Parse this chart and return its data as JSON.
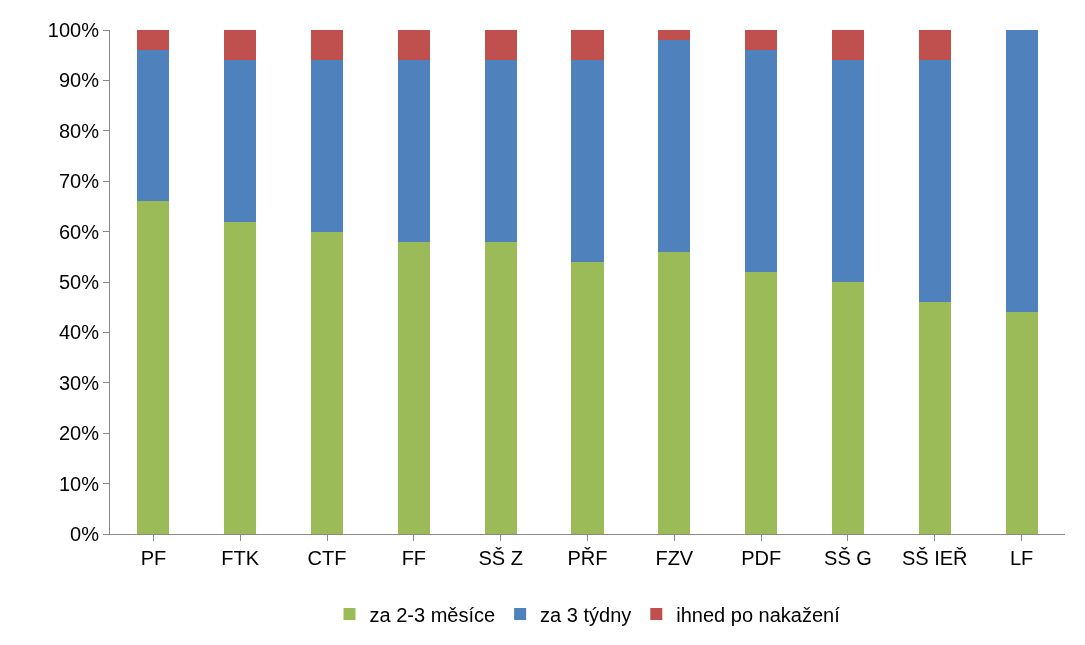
{
  "chart_data": {
    "type": "bar",
    "stacked": true,
    "categories": [
      "PF",
      "FTK",
      "CTF",
      "FF",
      "SŠ Z",
      "PŘF",
      "FZV",
      "PDF",
      "SŠ G",
      "SŠ IEŘ",
      "LF"
    ],
    "series": [
      {
        "name": "za 2-3 měsíce",
        "color": "#9bbb59",
        "values": [
          66,
          62,
          60,
          58,
          58,
          54,
          56,
          52,
          50,
          46,
          44
        ]
      },
      {
        "name": "za 3 týdny",
        "color": "#4f81bd",
        "values": [
          30,
          32,
          34,
          36,
          36,
          40,
          42,
          44,
          44,
          48,
          56
        ]
      },
      {
        "name": "ihned po nakažení",
        "color": "#c0504d",
        "values": [
          4,
          6,
          6,
          6,
          6,
          6,
          2,
          4,
          6,
          6,
          0
        ]
      }
    ],
    "ylim": [
      0,
      100
    ],
    "yticks": [
      {
        "value": 0,
        "label": "0%"
      },
      {
        "value": 10,
        "label": "10%"
      },
      {
        "value": 20,
        "label": "20%"
      },
      {
        "value": 30,
        "label": "30%"
      },
      {
        "value": 40,
        "label": "40%"
      },
      {
        "value": 50,
        "label": "50%"
      },
      {
        "value": 60,
        "label": "60%"
      },
      {
        "value": 70,
        "label": "70%"
      },
      {
        "value": 80,
        "label": "80%"
      },
      {
        "value": 90,
        "label": "90%"
      },
      {
        "value": 100,
        "label": "100%"
      }
    ],
    "legend": "bottom"
  }
}
